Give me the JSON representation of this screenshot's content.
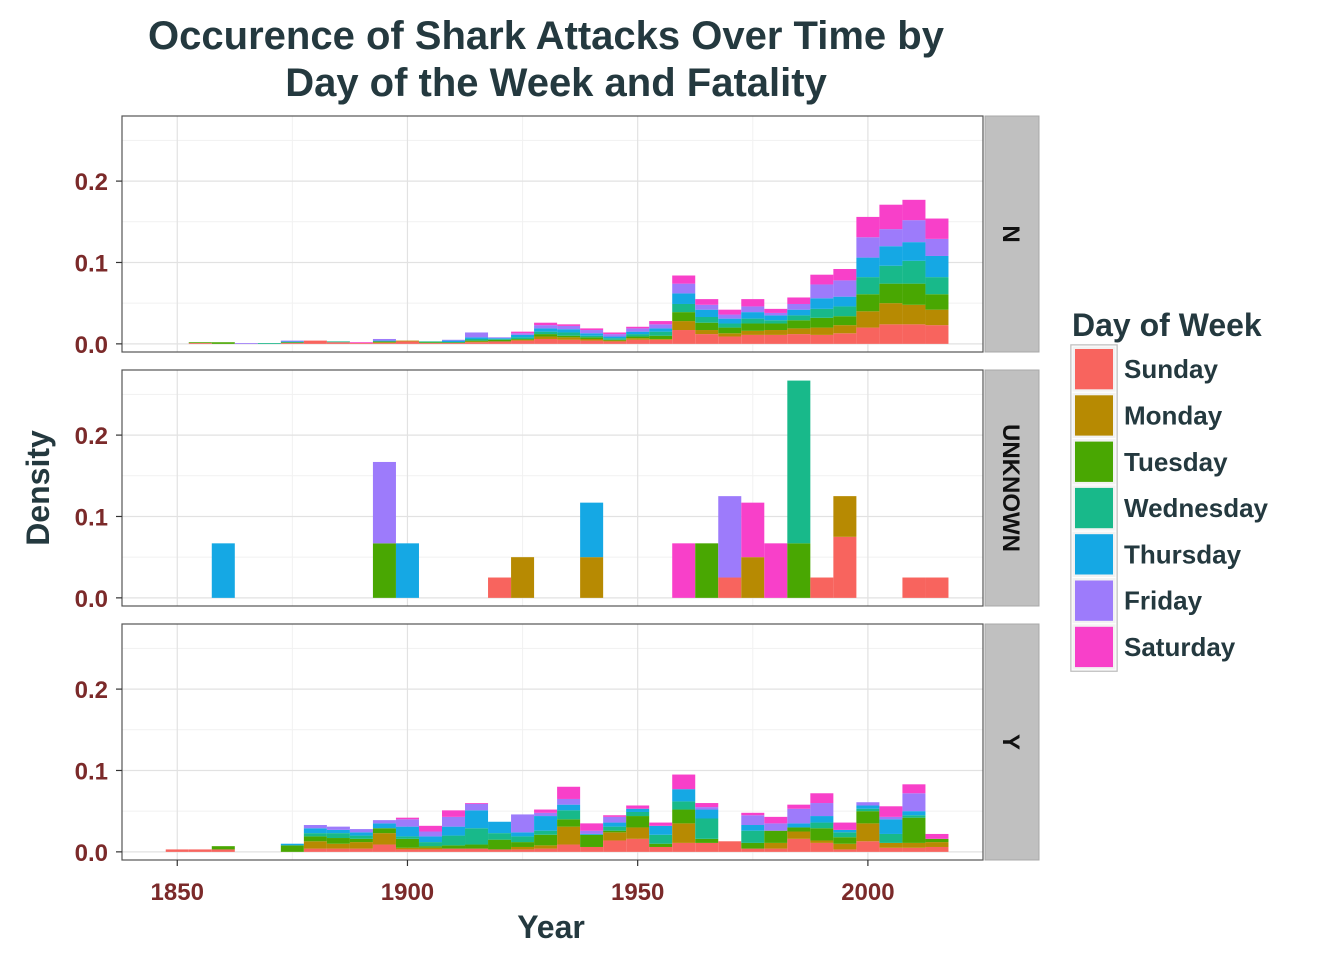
{
  "chart_data": {
    "type": "bar",
    "title_lines": [
      "Occurence of Shark Attacks Over Time by",
      "Day of the Week and Fatality"
    ],
    "xlabel": "Year",
    "ylabel": "Density",
    "xlim": [
      1838,
      2025
    ],
    "ylim": [
      -0.01,
      0.28
    ],
    "x_ticks": [
      1850,
      1900,
      1950,
      2000
    ],
    "y_ticks": [
      0.0,
      0.1,
      0.2
    ],
    "y_tick_labels": [
      "0.0",
      "0.1",
      "0.2"
    ],
    "bin_width": 5,
    "grid": true,
    "legend": {
      "title": "Day of Week",
      "position": "right",
      "entries": [
        "Sunday",
        "Monday",
        "Tuesday",
        "Wednesday",
        "Thursday",
        "Friday",
        "Saturday"
      ]
    },
    "colors": {
      "Sunday": "#f8645e",
      "Monday": "#b78a02",
      "Tuesday": "#49a702",
      "Wednesday": "#18b98a",
      "Thursday": "#15a8e4",
      "Friday": "#9d7bfb",
      "Saturday": "#f840c9"
    },
    "panels": [
      {
        "strip": "N",
        "bins": [
          {
            "x": 1855,
            "stack": [
              0.001,
              0.0,
              0.001,
              0.0,
              0.0,
              0.0,
              0.0
            ]
          },
          {
            "x": 1860,
            "stack": [
              0.0,
              0.0,
              0.002,
              0.0,
              0.0,
              0.0,
              0.0
            ]
          },
          {
            "x": 1865,
            "stack": [
              0.0,
              0.0,
              0.0,
              0.0,
              0.0,
              0.001,
              0.0
            ]
          },
          {
            "x": 1870,
            "stack": [
              0.0,
              0.0,
              0.0,
              0.001,
              0.0,
              0.0,
              0.0
            ]
          },
          {
            "x": 1875,
            "stack": [
              0.001,
              0.0,
              0.001,
              0.0,
              0.001,
              0.001,
              0.0
            ]
          },
          {
            "x": 1880,
            "stack": [
              0.004,
              0.0,
              0.0,
              0.0,
              0.0,
              0.0,
              0.0
            ]
          },
          {
            "x": 1885,
            "stack": [
              0.002,
              0.0,
              0.0,
              0.001,
              0.0,
              0.0,
              0.0
            ]
          },
          {
            "x": 1890,
            "stack": [
              0.001,
              0.0,
              0.0,
              0.0,
              0.0,
              0.0,
              0.001
            ]
          },
          {
            "x": 1895,
            "stack": [
              0.001,
              0.001,
              0.001,
              0.0,
              0.001,
              0.002,
              0.0
            ]
          },
          {
            "x": 1900,
            "stack": [
              0.003,
              0.001,
              0.0,
              0.0,
              0.0,
              0.0,
              0.0
            ]
          },
          {
            "x": 1905,
            "stack": [
              0.001,
              0.0,
              0.001,
              0.001,
              0.0,
              0.0,
              0.0
            ]
          },
          {
            "x": 1910,
            "stack": [
              0.001,
              0.0,
              0.001,
              0.0,
              0.002,
              0.001,
              0.0
            ]
          },
          {
            "x": 1915,
            "stack": [
              0.002,
              0.001,
              0.001,
              0.002,
              0.002,
              0.006,
              0.0
            ]
          },
          {
            "x": 1920,
            "stack": [
              0.003,
              0.0,
              0.002,
              0.001,
              0.001,
              0.001,
              0.0
            ]
          },
          {
            "x": 1925,
            "stack": [
              0.004,
              0.001,
              0.001,
              0.002,
              0.003,
              0.002,
              0.002
            ]
          },
          {
            "x": 1930,
            "stack": [
              0.006,
              0.003,
              0.003,
              0.003,
              0.004,
              0.004,
              0.003
            ]
          },
          {
            "x": 1935,
            "stack": [
              0.005,
              0.003,
              0.002,
              0.004,
              0.004,
              0.004,
              0.002
            ]
          },
          {
            "x": 1940,
            "stack": [
              0.004,
              0.002,
              0.002,
              0.002,
              0.003,
              0.004,
              0.002
            ]
          },
          {
            "x": 1945,
            "stack": [
              0.003,
              0.001,
              0.001,
              0.002,
              0.002,
              0.003,
              0.002
            ]
          },
          {
            "x": 1950,
            "stack": [
              0.005,
              0.002,
              0.002,
              0.003,
              0.003,
              0.004,
              0.002
            ]
          },
          {
            "x": 1955,
            "stack": [
              0.005,
              0.001,
              0.004,
              0.005,
              0.004,
              0.005,
              0.004
            ]
          },
          {
            "x": 1960,
            "stack": [
              0.017,
              0.011,
              0.011,
              0.01,
              0.013,
              0.012,
              0.01
            ]
          },
          {
            "x": 1965,
            "stack": [
              0.012,
              0.005,
              0.009,
              0.007,
              0.009,
              0.006,
              0.007
            ]
          },
          {
            "x": 1970,
            "stack": [
              0.009,
              0.004,
              0.007,
              0.005,
              0.006,
              0.005,
              0.006
            ]
          },
          {
            "x": 1975,
            "stack": [
              0.011,
              0.005,
              0.009,
              0.006,
              0.008,
              0.007,
              0.009
            ]
          },
          {
            "x": 1980,
            "stack": [
              0.011,
              0.006,
              0.008,
              0.004,
              0.006,
              0.003,
              0.005
            ]
          },
          {
            "x": 1985,
            "stack": [
              0.012,
              0.007,
              0.01,
              0.006,
              0.007,
              0.007,
              0.008
            ]
          },
          {
            "x": 1990,
            "stack": [
              0.011,
              0.009,
              0.012,
              0.011,
              0.013,
              0.017,
              0.012
            ]
          },
          {
            "x": 1995,
            "stack": [
              0.013,
              0.01,
              0.011,
              0.012,
              0.012,
              0.02,
              0.014
            ]
          },
          {
            "x": 2000,
            "stack": [
              0.02,
              0.02,
              0.021,
              0.021,
              0.024,
              0.025,
              0.025
            ]
          },
          {
            "x": 2005,
            "stack": [
              0.024,
              0.026,
              0.024,
              0.022,
              0.024,
              0.021,
              0.03
            ]
          },
          {
            "x": 2010,
            "stack": [
              0.024,
              0.024,
              0.026,
              0.028,
              0.023,
              0.027,
              0.025
            ]
          },
          {
            "x": 2015,
            "stack": [
              0.023,
              0.019,
              0.019,
              0.021,
              0.026,
              0.021,
              0.025
            ]
          }
        ]
      },
      {
        "strip": "UNKNOWN",
        "bins": [
          {
            "x": 1860,
            "stack": [
              0.0,
              0.0,
              0.0,
              0.0,
              0.067,
              0.0,
              0.0
            ]
          },
          {
            "x": 1895,
            "stack": [
              0.0,
              0.0,
              0.067,
              0.0,
              0.0,
              0.1,
              0.0
            ]
          },
          {
            "x": 1900,
            "stack": [
              0.0,
              0.0,
              0.0,
              0.0,
              0.067,
              0.0,
              0.0
            ]
          },
          {
            "x": 1920,
            "stack": [
              0.025,
              0.0,
              0.0,
              0.0,
              0.0,
              0.0,
              0.0
            ]
          },
          {
            "x": 1925,
            "stack": [
              0.0,
              0.05,
              0.0,
              0.0,
              0.0,
              0.0,
              0.0
            ]
          },
          {
            "x": 1940,
            "stack": [
              0.0,
              0.05,
              0.0,
              0.0,
              0.067,
              0.0,
              0.0
            ]
          },
          {
            "x": 1960,
            "stack": [
              0.0,
              0.0,
              0.0,
              0.0,
              0.0,
              0.0,
              0.067
            ]
          },
          {
            "x": 1965,
            "stack": [
              0.0,
              0.0,
              0.067,
              0.0,
              0.0,
              0.0,
              0.0
            ]
          },
          {
            "x": 1970,
            "stack": [
              0.025,
              0.0,
              0.0,
              0.0,
              0.0,
              0.1,
              0.0
            ]
          },
          {
            "x": 1975,
            "stack": [
              0.0,
              0.05,
              0.0,
              0.0,
              0.0,
              0.0,
              0.067
            ]
          },
          {
            "x": 1980,
            "stack": [
              0.0,
              0.0,
              0.0,
              0.0,
              0.0,
              0.0,
              0.067
            ]
          },
          {
            "x": 1985,
            "stack": [
              0.0,
              0.0,
              0.067,
              0.2,
              0.0,
              0.0,
              0.0
            ]
          },
          {
            "x": 1990,
            "stack": [
              0.025,
              0.0,
              0.0,
              0.0,
              0.0,
              0.0,
              0.0
            ]
          },
          {
            "x": 1995,
            "stack": [
              0.075,
              0.05,
              0.0,
              0.0,
              0.0,
              0.0,
              0.0
            ]
          },
          {
            "x": 2010,
            "stack": [
              0.025,
              0.0,
              0.0,
              0.0,
              0.0,
              0.0,
              0.0
            ]
          },
          {
            "x": 2015,
            "stack": [
              0.025,
              0.0,
              0.0,
              0.0,
              0.0,
              0.0,
              0.0
            ]
          }
        ]
      },
      {
        "strip": "Y",
        "bins": [
          {
            "x": 1850,
            "stack": [
              0.003,
              0.0,
              0.0,
              0.0,
              0.0,
              0.0,
              0.0
            ]
          },
          {
            "x": 1855,
            "stack": [
              0.003,
              0.0,
              0.0,
              0.0,
              0.0,
              0.0,
              0.0
            ]
          },
          {
            "x": 1860,
            "stack": [
              0.003,
              0.0,
              0.004,
              0.0,
              0.0,
              0.0,
              0.0
            ]
          },
          {
            "x": 1875,
            "stack": [
              0.0,
              0.0,
              0.008,
              0.0,
              0.002,
              0.0,
              0.0
            ]
          },
          {
            "x": 1880,
            "stack": [
              0.004,
              0.009,
              0.006,
              0.004,
              0.006,
              0.004,
              0.0
            ]
          },
          {
            "x": 1885,
            "stack": [
              0.004,
              0.006,
              0.007,
              0.006,
              0.004,
              0.004,
              0.0
            ]
          },
          {
            "x": 1890,
            "stack": [
              0.004,
              0.008,
              0.004,
              0.004,
              0.004,
              0.004,
              0.0
            ]
          },
          {
            "x": 1895,
            "stack": [
              0.009,
              0.014,
              0.006,
              0.0,
              0.006,
              0.004,
              0.0
            ]
          },
          {
            "x": 1900,
            "stack": [
              0.003,
              0.002,
              0.011,
              0.003,
              0.012,
              0.009,
              0.002
            ]
          },
          {
            "x": 1905,
            "stack": [
              0.003,
              0.002,
              0.002,
              0.005,
              0.007,
              0.006,
              0.007
            ]
          },
          {
            "x": 1910,
            "stack": [
              0.004,
              0.0,
              0.004,
              0.012,
              0.011,
              0.012,
              0.008
            ]
          },
          {
            "x": 1915,
            "stack": [
              0.004,
              0.0,
              0.005,
              0.02,
              0.022,
              0.008,
              0.001
            ]
          },
          {
            "x": 1920,
            "stack": [
              0.003,
              0.0,
              0.012,
              0.008,
              0.014,
              0.0,
              0.0
            ]
          },
          {
            "x": 1925,
            "stack": [
              0.003,
              0.003,
              0.006,
              0.007,
              0.005,
              0.022,
              0.0
            ]
          },
          {
            "x": 1930,
            "stack": [
              0.004,
              0.004,
              0.013,
              0.005,
              0.018,
              0.004,
              0.004
            ]
          },
          {
            "x": 1935,
            "stack": [
              0.009,
              0.022,
              0.009,
              0.011,
              0.007,
              0.007,
              0.015
            ]
          },
          {
            "x": 1940,
            "stack": [
              0.006,
              0.0,
              0.015,
              0.0,
              0.001,
              0.004,
              0.009
            ]
          },
          {
            "x": 1945,
            "stack": [
              0.014,
              0.01,
              0.002,
              0.005,
              0.005,
              0.007,
              0.002
            ]
          },
          {
            "x": 1950,
            "stack": [
              0.016,
              0.014,
              0.014,
              0.005,
              0.004,
              0.0,
              0.004
            ]
          },
          {
            "x": 1955,
            "stack": [
              0.006,
              0.0,
              0.004,
              0.011,
              0.011,
              0.0,
              0.004
            ]
          },
          {
            "x": 1960,
            "stack": [
              0.011,
              0.024,
              0.017,
              0.01,
              0.015,
              0.0,
              0.018
            ]
          },
          {
            "x": 1965,
            "stack": [
              0.011,
              0.0,
              0.005,
              0.025,
              0.011,
              0.003,
              0.005
            ]
          },
          {
            "x": 1970,
            "stack": [
              0.013,
              0.0,
              0.0,
              0.0,
              0.0,
              0.0,
              0.0
            ]
          },
          {
            "x": 1975,
            "stack": [
              0.004,
              0.0,
              0.007,
              0.015,
              0.007,
              0.012,
              0.003
            ]
          },
          {
            "x": 1980,
            "stack": [
              0.004,
              0.007,
              0.015,
              0.0,
              0.0,
              0.009,
              0.008
            ]
          },
          {
            "x": 1985,
            "stack": [
              0.016,
              0.009,
              0.005,
              0.0,
              0.005,
              0.018,
              0.005
            ]
          },
          {
            "x": 1990,
            "stack": [
              0.011,
              0.003,
              0.015,
              0.007,
              0.008,
              0.016,
              0.012
            ]
          },
          {
            "x": 1995,
            "stack": [
              0.003,
              0.007,
              0.008,
              0.006,
              0.003,
              0.0,
              0.009
            ]
          },
          {
            "x": 2000,
            "stack": [
              0.013,
              0.022,
              0.015,
              0.003,
              0.004,
              0.004,
              0.0
            ]
          },
          {
            "x": 2005,
            "stack": [
              0.005,
              0.006,
              0.0,
              0.011,
              0.018,
              0.003,
              0.013
            ]
          },
          {
            "x": 2010,
            "stack": [
              0.005,
              0.006,
              0.031,
              0.003,
              0.005,
              0.022,
              0.011
            ]
          },
          {
            "x": 2015,
            "stack": [
              0.006,
              0.006,
              0.004,
              0.0,
              0.0,
              0.0,
              0.006
            ]
          }
        ]
      }
    ]
  }
}
